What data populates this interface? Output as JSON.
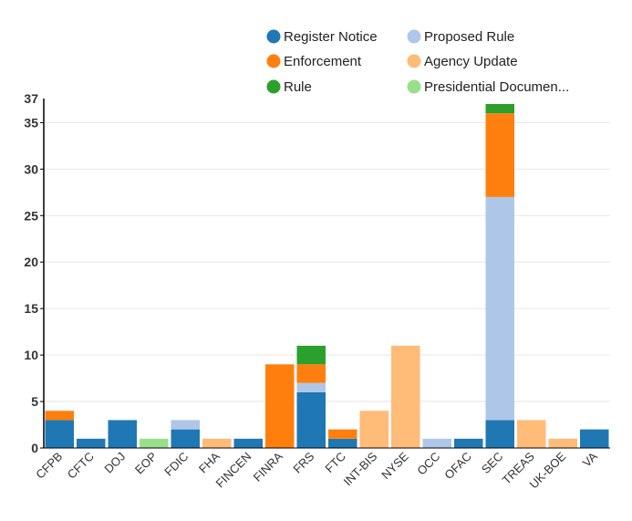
{
  "chart_data": {
    "type": "bar",
    "stacked": true,
    "categories": [
      "CFPB",
      "CFTC",
      "DOJ",
      "EOP",
      "FDIC",
      "FHA",
      "FINCEN",
      "FINRA",
      "FRS",
      "FTC",
      "INT-BIS",
      "NYSE",
      "OCC",
      "OFAC",
      "SEC",
      "TREAS",
      "UK-BOE",
      "VA"
    ],
    "series": [
      {
        "name": "Register Notice",
        "color": "#1f77b4",
        "values": [
          3,
          1,
          3,
          0,
          2,
          0,
          1,
          0,
          6,
          1,
          0,
          0,
          0,
          1,
          3,
          0,
          0,
          2
        ]
      },
      {
        "name": "Proposed Rule",
        "color": "#aec7e8",
        "values": [
          0,
          0,
          0,
          0,
          1,
          0,
          0,
          0,
          1,
          0,
          0,
          0,
          1,
          0,
          24,
          0,
          0,
          0
        ]
      },
      {
        "name": "Enforcement",
        "color": "#ff7f0e",
        "values": [
          1,
          0,
          0,
          0,
          0,
          0,
          0,
          9,
          2,
          1,
          0,
          0,
          0,
          0,
          9,
          0,
          0,
          0
        ]
      },
      {
        "name": "Agency Update",
        "color": "#ffbb78",
        "values": [
          0,
          0,
          0,
          0,
          0,
          1,
          0,
          0,
          0,
          0,
          4,
          11,
          0,
          0,
          0,
          3,
          1,
          0
        ]
      },
      {
        "name": "Rule",
        "color": "#2ca02c",
        "values": [
          0,
          0,
          0,
          0,
          0,
          0,
          0,
          0,
          2,
          0,
          0,
          0,
          0,
          0,
          1,
          0,
          0,
          0
        ]
      },
      {
        "name": "Presidential Documen...",
        "color": "#98df8a",
        "values": [
          0,
          0,
          0,
          1,
          0,
          0,
          0,
          0,
          0,
          0,
          0,
          0,
          0,
          0,
          0,
          0,
          0,
          0
        ]
      }
    ],
    "y_ticks": [
      0,
      5,
      10,
      15,
      20,
      25,
      30,
      35
    ],
    "y_max_label": "37",
    "ylim": [
      0,
      37
    ],
    "grid": true,
    "legend_position": "top"
  }
}
